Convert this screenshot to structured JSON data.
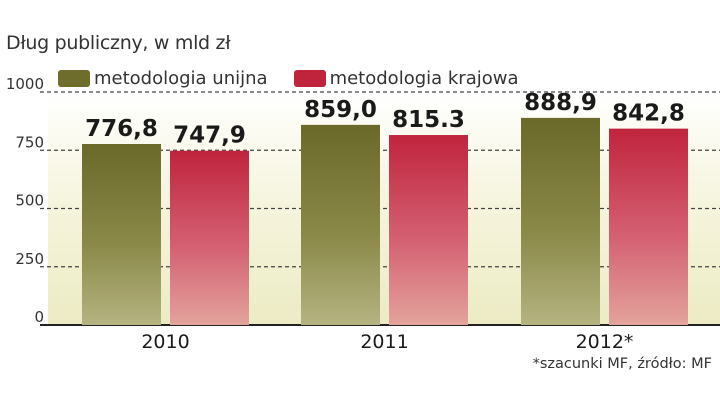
{
  "chart_data": {
    "type": "bar",
    "title": "Dług publiczny, w mld zł",
    "categories": [
      "2010",
      "2011",
      "2012*"
    ],
    "series": [
      {
        "name": "metodologia unijna",
        "values": [
          776.8,
          859.0,
          888.9
        ],
        "labels": [
          "776,8",
          "859,0",
          "888,9"
        ],
        "color": "#6e6d2c"
      },
      {
        "name": "metodologia krajowa",
        "values": [
          747.9,
          815.3,
          842.8
        ],
        "labels": [
          "747,9",
          "815.3",
          "842,8"
        ],
        "color": "#c0243d"
      }
    ],
    "yticks": [
      0,
      250,
      500,
      750,
      1000
    ],
    "ylim": [
      0,
      1000
    ],
    "grid": true,
    "legend_position": "top-left",
    "note": "*szacunki MF, źródło: MF"
  }
}
